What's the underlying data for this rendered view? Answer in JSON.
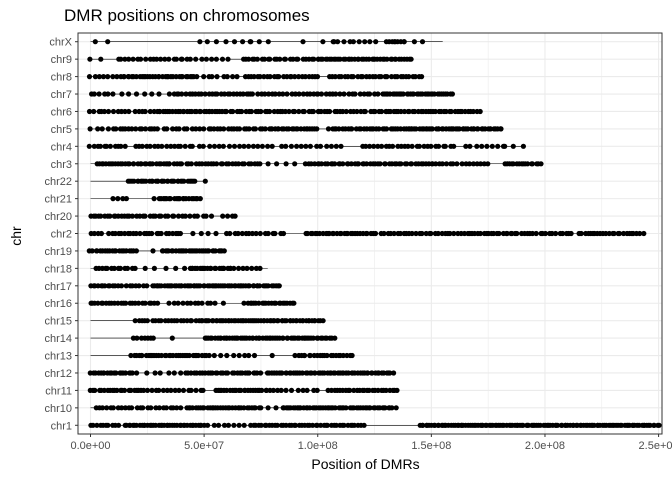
{
  "chart_data": {
    "type": "scatter",
    "title": "DMR positions on chromosomes",
    "xlabel": "Position of DMRs",
    "ylabel": "chr",
    "xlim": [
      -5500000,
      251500000
    ],
    "x_ticks": [
      0,
      50000000,
      100000000,
      150000000,
      200000000,
      250000000
    ],
    "x_tick_labels": [
      "0.0e+00",
      "5.0e+07",
      "1.0e+08",
      "1.5e+08",
      "2.0e+08",
      "2.5e+08"
    ],
    "categories": [
      "chr1",
      "chr10",
      "chr11",
      "chr12",
      "chr13",
      "chr14",
      "chr15",
      "chr16",
      "chr17",
      "chr18",
      "chr19",
      "chr2",
      "chr20",
      "chr21",
      "chr22",
      "chr3",
      "chr4",
      "chr5",
      "chr6",
      "chr7",
      "chr8",
      "chr9",
      "chrX"
    ],
    "grid": true,
    "colors": {
      "point": "#000000",
      "line": "#000000",
      "grid": "#ebebeb",
      "border": "#333333"
    },
    "series": [
      {
        "chr": "chr1",
        "extent": [
          0,
          248000000
        ],
        "clusters": [
          [
            0,
            12000000,
            0.7
          ],
          [
            15000000,
            50000000,
            0.9
          ],
          [
            52000000,
            70000000,
            0.4
          ],
          [
            72000000,
            120000000,
            0.7
          ],
          [
            145000000,
            250000000,
            0.95
          ]
        ]
      },
      {
        "chr": "chr10",
        "extent": [
          0,
          134000000
        ],
        "clusters": [
          [
            2000000,
            40000000,
            0.5
          ],
          [
            42000000,
            75000000,
            0.8
          ],
          [
            78000000,
            92000000,
            0.3
          ],
          [
            85000000,
            134000000,
            0.85
          ]
        ]
      },
      {
        "chr": "chr11",
        "extent": [
          0,
          135000000
        ],
        "clusters": [
          [
            0,
            25000000,
            0.7
          ],
          [
            27000000,
            50000000,
            0.5
          ],
          [
            55000000,
            80000000,
            0.8
          ],
          [
            82000000,
            100000000,
            0.4
          ],
          [
            105000000,
            135000000,
            0.7
          ]
        ]
      },
      {
        "chr": "chr12",
        "extent": [
          0,
          133000000
        ],
        "clusters": [
          [
            0,
            20000000,
            0.8
          ],
          [
            25000000,
            40000000,
            0.3
          ],
          [
            42000000,
            75000000,
            0.7
          ],
          [
            78000000,
            133000000,
            0.85
          ]
        ]
      },
      {
        "chr": "chr13",
        "extent": [
          0,
          115000000
        ],
        "clusters": [
          [
            18000000,
            52000000,
            0.8
          ],
          [
            55000000,
            70000000,
            0.4
          ],
          [
            72000000,
            80000000,
            0.2
          ],
          [
            90000000,
            115000000,
            0.7
          ]
        ]
      },
      {
        "chr": "chr14",
        "extent": [
          0,
          107000000
        ],
        "clusters": [
          [
            19000000,
            28000000,
            0.6
          ],
          [
            34000000,
            38000000,
            0.3
          ],
          [
            50000000,
            107000000,
            0.85
          ]
        ]
      },
      {
        "chr": "chr15",
        "extent": [
          0,
          102000000
        ],
        "clusters": [
          [
            20000000,
            45000000,
            0.6
          ],
          [
            47000000,
            102000000,
            0.9
          ]
        ]
      },
      {
        "chr": "chr16",
        "extent": [
          0,
          90000000
        ],
        "clusters": [
          [
            0,
            8000000,
            0.8
          ],
          [
            9000000,
            30000000,
            0.6
          ],
          [
            35000000,
            55000000,
            0.5
          ],
          [
            57000000,
            60000000,
            0.3
          ],
          [
            68000000,
            90000000,
            0.8
          ]
        ]
      },
      {
        "chr": "chr17",
        "extent": [
          0,
          83000000
        ],
        "clusters": [
          [
            0,
            12000000,
            0.8
          ],
          [
            14000000,
            25000000,
            0.6
          ],
          [
            27000000,
            83000000,
            0.9
          ]
        ]
      },
      {
        "chr": "chr18",
        "extent": [
          0,
          78000000
        ],
        "clusters": [
          [
            2000000,
            18000000,
            0.6
          ],
          [
            20000000,
            28000000,
            0.3
          ],
          [
            33000000,
            45000000,
            0.3
          ],
          [
            44000000,
            63000000,
            0.9
          ],
          [
            65000000,
            75000000,
            0.5
          ]
        ]
      },
      {
        "chr": "chr19",
        "extent": [
          0,
          59000000
        ],
        "clusters": [
          [
            0,
            20000000,
            0.8
          ],
          [
            28000000,
            32000000,
            0.5
          ],
          [
            32000000,
            59000000,
            0.9
          ]
        ]
      },
      {
        "chr": "chr2",
        "extent": [
          0,
          242000000
        ],
        "clusters": [
          [
            0,
            5000000,
            0.6
          ],
          [
            8000000,
            40000000,
            0.6
          ],
          [
            45000000,
            55000000,
            0.3
          ],
          [
            60000000,
            85000000,
            0.5
          ],
          [
            95000000,
            125000000,
            0.8
          ],
          [
            128000000,
            160000000,
            0.6
          ],
          [
            162000000,
            185000000,
            0.7
          ],
          [
            185000000,
            212000000,
            0.6
          ],
          [
            215000000,
            243000000,
            0.7
          ]
        ]
      },
      {
        "chr": "chr20",
        "extent": [
          0,
          64000000
        ],
        "clusters": [
          [
            0,
            15000000,
            0.7
          ],
          [
            16000000,
            40000000,
            0.6
          ],
          [
            42000000,
            53000000,
            0.5
          ],
          [
            58000000,
            64000000,
            0.5
          ]
        ]
      },
      {
        "chr": "chr21",
        "extent": [
          0,
          48000000
        ],
        "clusters": [
          [
            10000000,
            16000000,
            0.5
          ],
          [
            26000000,
            30000000,
            0.3
          ],
          [
            30000000,
            48000000,
            0.9
          ]
        ]
      },
      {
        "chr": "chr22",
        "extent": [
          0,
          51000000
        ],
        "clusters": [
          [
            17000000,
            46000000,
            0.95
          ],
          [
            50000000,
            51000000,
            0.2
          ]
        ]
      },
      {
        "chr": "chr3",
        "extent": [
          0,
          198000000
        ],
        "clusters": [
          [
            3000000,
            35000000,
            0.8
          ],
          [
            35000000,
            75000000,
            0.6
          ],
          [
            78000000,
            90000000,
            0.3
          ],
          [
            95000000,
            150000000,
            0.7
          ],
          [
            150000000,
            175000000,
            0.5
          ],
          [
            182000000,
            198000000,
            0.8
          ]
        ]
      },
      {
        "chr": "chr4",
        "extent": [
          0,
          190000000
        ],
        "clusters": [
          [
            0,
            15000000,
            0.6
          ],
          [
            20000000,
            45000000,
            0.5
          ],
          [
            48000000,
            80000000,
            0.4
          ],
          [
            84000000,
            110000000,
            0.4
          ],
          [
            120000000,
            160000000,
            0.5
          ],
          [
            165000000,
            182000000,
            0.4
          ],
          [
            182000000,
            190000000,
            0.3
          ]
        ]
      },
      {
        "chr": "chr5",
        "extent": [
          0,
          181000000
        ],
        "clusters": [
          [
            0,
            8000000,
            0.4
          ],
          [
            10000000,
            30000000,
            0.6
          ],
          [
            32000000,
            50000000,
            0.5
          ],
          [
            52000000,
            80000000,
            0.6
          ],
          [
            80000000,
            100000000,
            0.8
          ],
          [
            105000000,
            140000000,
            0.7
          ],
          [
            140000000,
            181000000,
            0.9
          ]
        ]
      },
      {
        "chr": "chr6",
        "extent": [
          0,
          171000000
        ],
        "clusters": [
          [
            0,
            10000000,
            0.6
          ],
          [
            12000000,
            30000000,
            0.5
          ],
          [
            30000000,
            60000000,
            0.8
          ],
          [
            60000000,
            100000000,
            0.6
          ],
          [
            100000000,
            130000000,
            0.6
          ],
          [
            130000000,
            171000000,
            0.7
          ]
        ]
      },
      {
        "chr": "chr7",
        "extent": [
          0,
          159000000
        ],
        "clusters": [
          [
            0,
            8000000,
            0.5
          ],
          [
            10000000,
            30000000,
            0.3
          ],
          [
            35000000,
            70000000,
            0.6
          ],
          [
            70000000,
            100000000,
            0.5
          ],
          [
            100000000,
            130000000,
            0.5
          ],
          [
            130000000,
            159000000,
            0.9
          ]
        ]
      },
      {
        "chr": "chr8",
        "extent": [
          0,
          146000000
        ],
        "clusters": [
          [
            0,
            10000000,
            0.5
          ],
          [
            12000000,
            45000000,
            0.8
          ],
          [
            45000000,
            65000000,
            0.4
          ],
          [
            68000000,
            100000000,
            0.6
          ],
          [
            105000000,
            146000000,
            0.6
          ]
        ]
      },
      {
        "chr": "chr9",
        "extent": [
          0,
          141000000
        ],
        "clusters": [
          [
            0,
            5000000,
            0.4
          ],
          [
            12000000,
            40000000,
            0.5
          ],
          [
            40000000,
            60000000,
            0.4
          ],
          [
            67000000,
            100000000,
            0.6
          ],
          [
            100000000,
            141000000,
            0.8
          ]
        ]
      },
      {
        "chr": "chrX",
        "extent": [
          0,
          155000000
        ],
        "clusters": [
          [
            2000000,
            8000000,
            0.3
          ],
          [
            48000000,
            55000000,
            0.3
          ],
          [
            60000000,
            70000000,
            0.3
          ],
          [
            70000000,
            78000000,
            0.3
          ],
          [
            92000000,
            95000000,
            0.4
          ],
          [
            102000000,
            107000000,
            0.3
          ],
          [
            107000000,
            125000000,
            0.4
          ],
          [
            130000000,
            138000000,
            0.8
          ],
          [
            138000000,
            146000000,
            0.3
          ]
        ]
      }
    ]
  }
}
